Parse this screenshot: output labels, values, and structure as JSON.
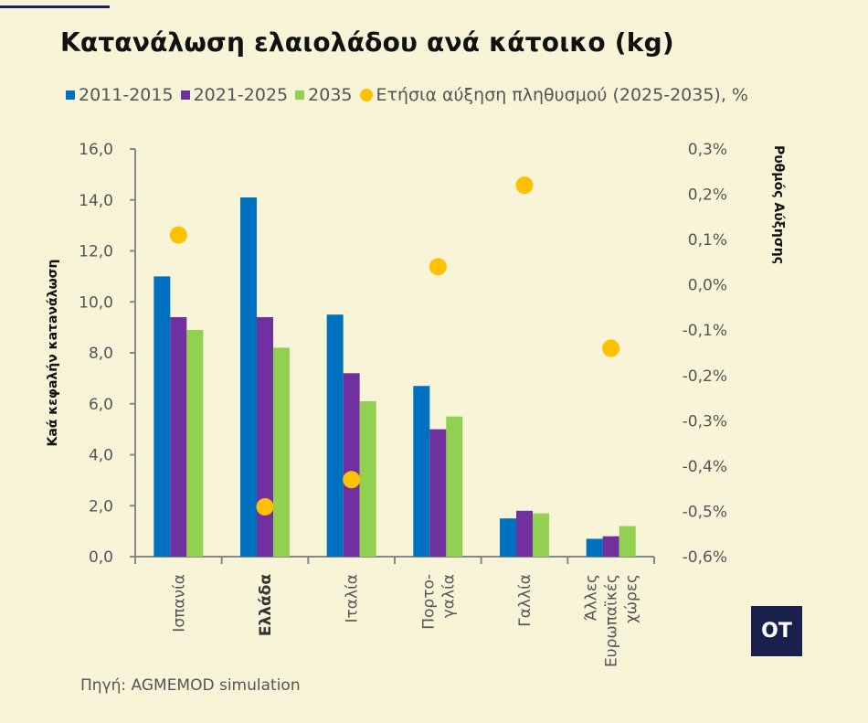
{
  "title": "Κατανάλωση ελαιολάδου ανά κάτοικο (kg)",
  "source": "Πηγή:  AGMEMOD simulation",
  "logo": "OT",
  "chart_data": {
    "type": "bar",
    "title": "Κατανάλωση ελαιολάδου ανά κάτοικο (kg)",
    "categories": [
      "Ισπανία",
      "Ελλάδα",
      "Ιταλία",
      "Πορτο-\nγαλία",
      "Γαλλία",
      "Άλλες\nΕυρωπαϊκές\nχώρες"
    ],
    "bold_category": "Ελλάδα",
    "series": [
      {
        "name": "2011-2015",
        "type": "bar",
        "axis": "left",
        "color": "#0070c0",
        "values": [
          11.0,
          14.1,
          9.5,
          6.7,
          1.5,
          0.7
        ]
      },
      {
        "name": "2021-2025",
        "type": "bar",
        "axis": "left",
        "color": "#7030a0",
        "values": [
          9.4,
          9.4,
          7.2,
          5.0,
          1.8,
          0.8
        ]
      },
      {
        "name": "2035",
        "type": "bar",
        "axis": "left",
        "color": "#92d050",
        "values": [
          8.9,
          8.2,
          6.1,
          5.5,
          1.7,
          1.2
        ]
      },
      {
        "name": "Ετήσια αύξηση πληθυσμού (2025-2035), %",
        "type": "scatter",
        "axis": "right",
        "color": "#ffc000",
        "values": [
          0.11,
          -0.49,
          -0.43,
          0.04,
          0.22,
          -0.14
        ]
      }
    ],
    "ylabel": "Κaά κεφaλήν κaτaνάλωση",
    "y2label": "Ρυθμός Αύξησης",
    "ylim": [
      0,
      16
    ],
    "yticks": [
      "0,0",
      "2,0",
      "4,0",
      "6,0",
      "8,0",
      "10,0",
      "12,0",
      "14,0",
      "16,0"
    ],
    "y2lim": [
      -0.6,
      0.3
    ],
    "y2ticks": [
      "-0,6%",
      "-0,5%",
      "-0,4%",
      "-0,3%",
      "-0,2%",
      "-0,1%",
      "0,0%",
      "0,1%",
      "0,2%",
      "0,3%"
    ],
    "grid": false,
    "legend": "top"
  }
}
